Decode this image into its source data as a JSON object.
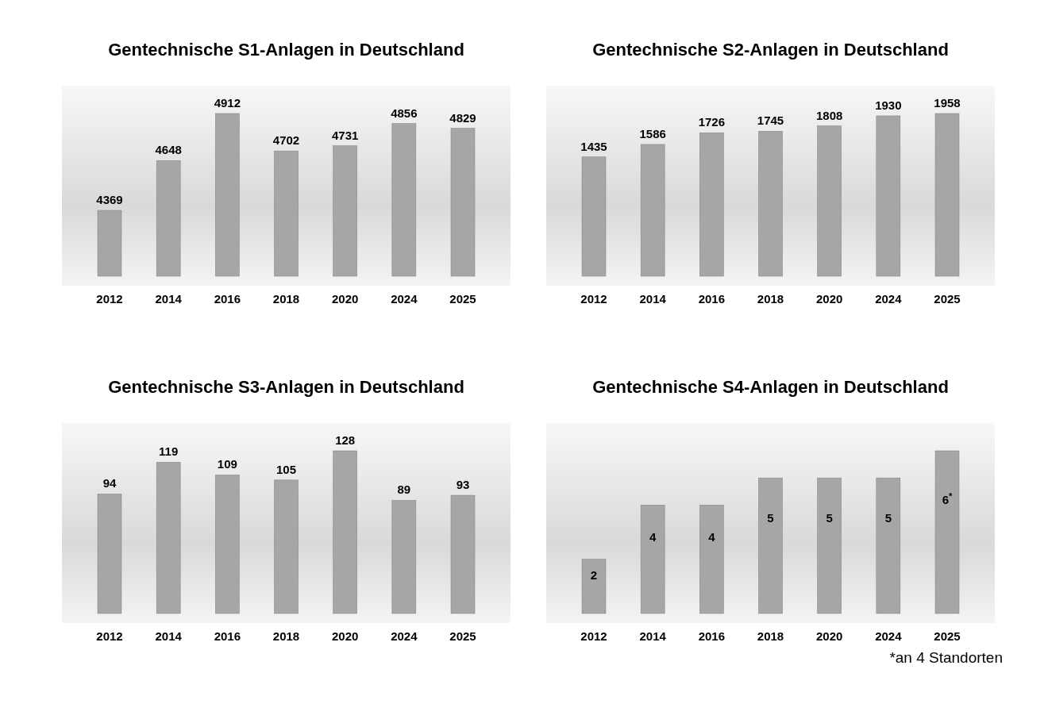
{
  "chart_data": [
    {
      "type": "bar",
      "title": "Gentechnische S1-Anlagen in Deutschland",
      "categories": [
        "2012",
        "2014",
        "2016",
        "2018",
        "2020",
        "2024",
        "2025"
      ],
      "values": [
        4369,
        4648,
        4912,
        4702,
        4731,
        4856,
        4829
      ],
      "color": "#a6a6a6",
      "ylim": [
        4000,
        4912
      ],
      "data_labels": true,
      "tick_labels": "x"
    },
    {
      "type": "bar",
      "title": "Gentechnische S2-Anlagen in Deutschland",
      "categories": [
        "2012",
        "2014",
        "2016",
        "2018",
        "2020",
        "2024",
        "2025"
      ],
      "values": [
        1435,
        1586,
        1726,
        1745,
        1808,
        1930,
        1958
      ],
      "color": "#a6a6a6",
      "ylim": [
        0,
        1958
      ],
      "data_labels": true,
      "tick_labels": "x"
    },
    {
      "type": "bar",
      "title": "Gentechnische S3-Anlagen in Deutschland",
      "categories": [
        "2012",
        "2014",
        "2016",
        "2018",
        "2020",
        "2024",
        "2025"
      ],
      "values": [
        94,
        119,
        109,
        105,
        128,
        89,
        93
      ],
      "color": "#a6a6a6",
      "ylim": [
        0,
        128
      ],
      "data_labels": true,
      "tick_labels": "x"
    },
    {
      "type": "bar",
      "title": "Gentechnische S4-Anlagen in Deutschland",
      "categories": [
        "2012",
        "2014",
        "2016",
        "2018",
        "2020",
        "2024",
        "2025"
      ],
      "values": [
        2,
        4,
        4,
        5,
        5,
        5,
        6
      ],
      "value_labels": [
        "2",
        "4",
        "4",
        "5",
        "5",
        "5",
        "6$^{*}$"
      ],
      "color": "#a6a6a6",
      "ylim": [
        0,
        6
      ],
      "tick_labels": "x",
      "annotations": [
        "*an 4 Standorten"
      ]
    }
  ]
}
